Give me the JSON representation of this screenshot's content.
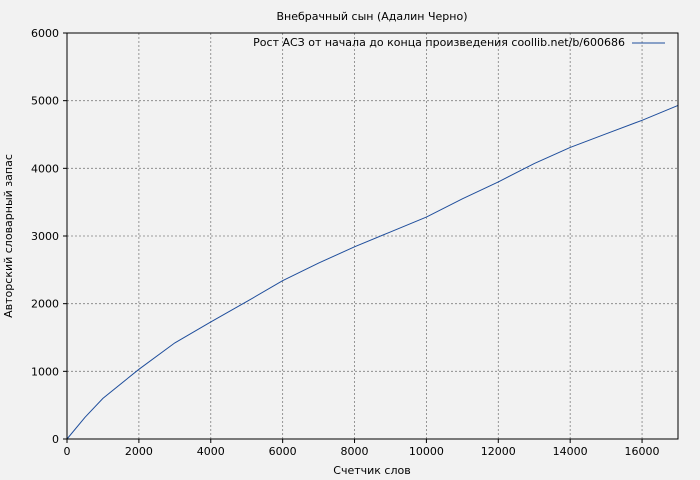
{
  "chart_data": {
    "type": "line",
    "title": "Внебрачный сын (Адалин Черно)",
    "xlabel": "Счетчик слов",
    "ylabel": "Авторский словарный запас",
    "xlim": [
      0,
      17000
    ],
    "ylim": [
      0,
      6000
    ],
    "x_ticks": [
      0,
      2000,
      4000,
      6000,
      8000,
      10000,
      12000,
      14000,
      16000
    ],
    "y_ticks": [
      0,
      1000,
      2000,
      3000,
      4000,
      5000,
      6000
    ],
    "x_tick_labels": [
      "0",
      "2000",
      "4000",
      "6000",
      "8000",
      "10000",
      "12000",
      "14000",
      "16000"
    ],
    "y_tick_labels": [
      "0",
      "1000",
      "2000",
      "3000",
      "4000",
      "5000",
      "6000"
    ],
    "grid": true,
    "legend_position": "top-right",
    "colors": {
      "background": "#f2f2f2",
      "plot_background": "#f2f2f2",
      "line": "#1f4e9c",
      "grid": "#808080"
    },
    "series": [
      {
        "name": "Рост АСЗ от начала до конца произведения coollib.net/b/600686",
        "x": [
          0,
          500,
          1000,
          2000,
          3000,
          4000,
          5000,
          6000,
          7000,
          8000,
          9000,
          10000,
          11000,
          12000,
          13000,
          14000,
          15000,
          16000,
          17000
        ],
        "y": [
          0,
          320,
          600,
          1030,
          1420,
          1730,
          2030,
          2340,
          2600,
          2840,
          3060,
          3280,
          3550,
          3800,
          4070,
          4310,
          4510,
          4710,
          4930
        ]
      }
    ]
  }
}
